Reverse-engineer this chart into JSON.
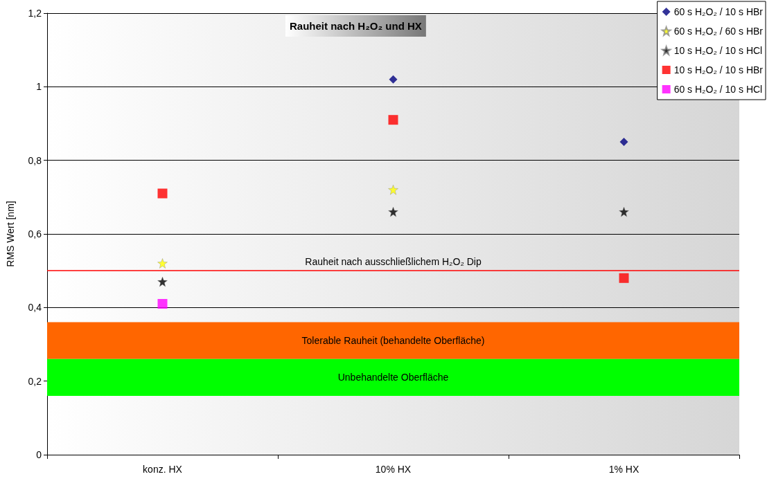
{
  "chart_data": {
    "type": "scatter",
    "title": "Rauheit nach H₂O₂ und HX",
    "ylabel": "RMS Wert [nm]",
    "categories": [
      "konz. HX",
      "10% HX",
      "1% HX"
    ],
    "series": [
      {
        "name": "60 s H₂O₂ / 10 s HBr",
        "color": "#000080",
        "marker": "diamond",
        "values": [
          null,
          1.02,
          0.85
        ]
      },
      {
        "name": "60 s H₂O₂ / 60 s HBr",
        "color": "#ffff00",
        "marker": "star",
        "values": [
          0.52,
          0.72,
          null
        ]
      },
      {
        "name": "10 s H₂O₂ / 10 s HCl",
        "color": "#000000",
        "marker": "star",
        "values": [
          0.47,
          0.66,
          0.66
        ]
      },
      {
        "name": "10 s H₂O₂ / 10 s HBr",
        "color": "#ff0000",
        "marker": "square",
        "values": [
          0.71,
          0.91,
          0.48
        ]
      },
      {
        "name": "60 s H₂O₂ / 10 s HCl",
        "color": "#ff00ff",
        "marker": "square",
        "values": [
          0.41,
          null,
          null
        ]
      }
    ],
    "ylim": [
      0,
      1.2
    ],
    "yticks": [
      {
        "value": 0,
        "label": "0"
      },
      {
        "value": 0.2,
        "label": "0,2"
      },
      {
        "value": 0.4,
        "label": "0,4"
      },
      {
        "value": 0.6,
        "label": "0,6"
      },
      {
        "value": 0.8,
        "label": "0,8"
      },
      {
        "value": 1,
        "label": "1"
      },
      {
        "value": 1.2,
        "label": "1,2"
      }
    ],
    "ref_lines": [
      {
        "axis": "y",
        "value": 0.5,
        "label": "Rauheit nach ausschließlichem H₂O₂ Dip",
        "color": "#ff0000"
      }
    ],
    "bands": [
      {
        "axis": "y",
        "from": 0.26,
        "to": 0.36,
        "label": "Tolerable Rauheit (behandelte Oberfläche)",
        "color": "#ff6600"
      },
      {
        "axis": "y",
        "from": 0.16,
        "to": 0.26,
        "label": "Unbehandelte Oberfläche",
        "color": "#00ff00"
      }
    ],
    "grid": "y",
    "legend": "top right"
  }
}
